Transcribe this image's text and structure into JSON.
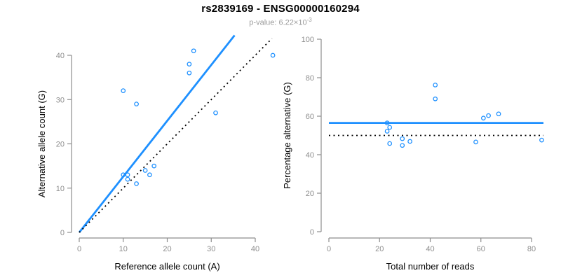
{
  "header": {
    "title": "rs2839169 - ENSG00000160294",
    "p_value_label": "p-value: 6.22×10",
    "p_value_exponent": "-3"
  },
  "colors": {
    "point_blue": "#1E90FF",
    "line_blue": "#1E90FF",
    "dotted_black": "#000000",
    "axis_gray": "#8e8e8e",
    "tick_label_gray": "#8e8e8e",
    "axis_title_black": "#000000",
    "subtitle_gray": "#9b9b9b",
    "background": "#ffffff"
  },
  "chart_data": [
    {
      "type": "scatter",
      "panel": "left",
      "xlabel": "Reference allele count (A)",
      "ylabel": "Alternative allele count (G)",
      "xlim": [
        0,
        44.5
      ],
      "ylim": [
        0,
        44.5
      ],
      "xticks": [
        0,
        10,
        20,
        30,
        40
      ],
      "yticks": [
        0,
        10,
        20,
        30,
        40
      ],
      "grid": false,
      "points": [
        [
          10,
          32
        ],
        [
          13,
          29
        ],
        [
          26,
          41
        ],
        [
          25,
          38
        ],
        [
          25,
          36
        ],
        [
          31,
          27
        ],
        [
          44,
          40
        ],
        [
          10,
          13
        ],
        [
          11,
          13
        ],
        [
          11,
          12
        ],
        [
          13,
          11
        ],
        [
          15,
          14
        ],
        [
          16,
          13
        ],
        [
          17,
          15
        ]
      ],
      "lines": [
        {
          "name": "fit-line",
          "style": "solid",
          "color": "#1E90FF",
          "x1": 0,
          "y1": 0,
          "x2": 35.3,
          "y2": 44.5
        },
        {
          "name": "identity-line",
          "style": "dotted",
          "color": "#000000",
          "x1": 0,
          "y1": 0,
          "x2": 43.8,
          "y2": 43.8
        }
      ]
    },
    {
      "type": "scatter",
      "panel": "right",
      "xlabel": "Total number of reads",
      "ylabel": "Percentage alternative (G)",
      "xlim": [
        0,
        85
      ],
      "ylim": [
        0,
        100
      ],
      "xticks": [
        0,
        20,
        40,
        60,
        80
      ],
      "yticks": [
        0,
        20,
        40,
        60,
        80,
        100
      ],
      "grid": false,
      "points": [
        [
          42,
          76.2
        ],
        [
          42,
          69.0
        ],
        [
          67,
          61.2
        ],
        [
          63,
          60.3
        ],
        [
          61,
          59.0
        ],
        [
          58,
          46.6
        ],
        [
          84,
          47.6
        ],
        [
          23,
          56.5
        ],
        [
          24,
          54.2
        ],
        [
          23,
          52.2
        ],
        [
          24,
          45.8
        ],
        [
          29,
          48.3
        ],
        [
          29,
          44.8
        ],
        [
          32,
          46.9
        ]
      ],
      "lines": [
        {
          "name": "mean-percentage-line",
          "style": "solid",
          "color": "#1E90FF",
          "x1": 0,
          "y1": 56.5,
          "x2": 84.7,
          "y2": 56.5
        },
        {
          "name": "fifty-percent-line",
          "style": "dotted",
          "color": "#000000",
          "x1": 0,
          "y1": 50,
          "x2": 84.7,
          "y2": 50
        }
      ]
    }
  ]
}
